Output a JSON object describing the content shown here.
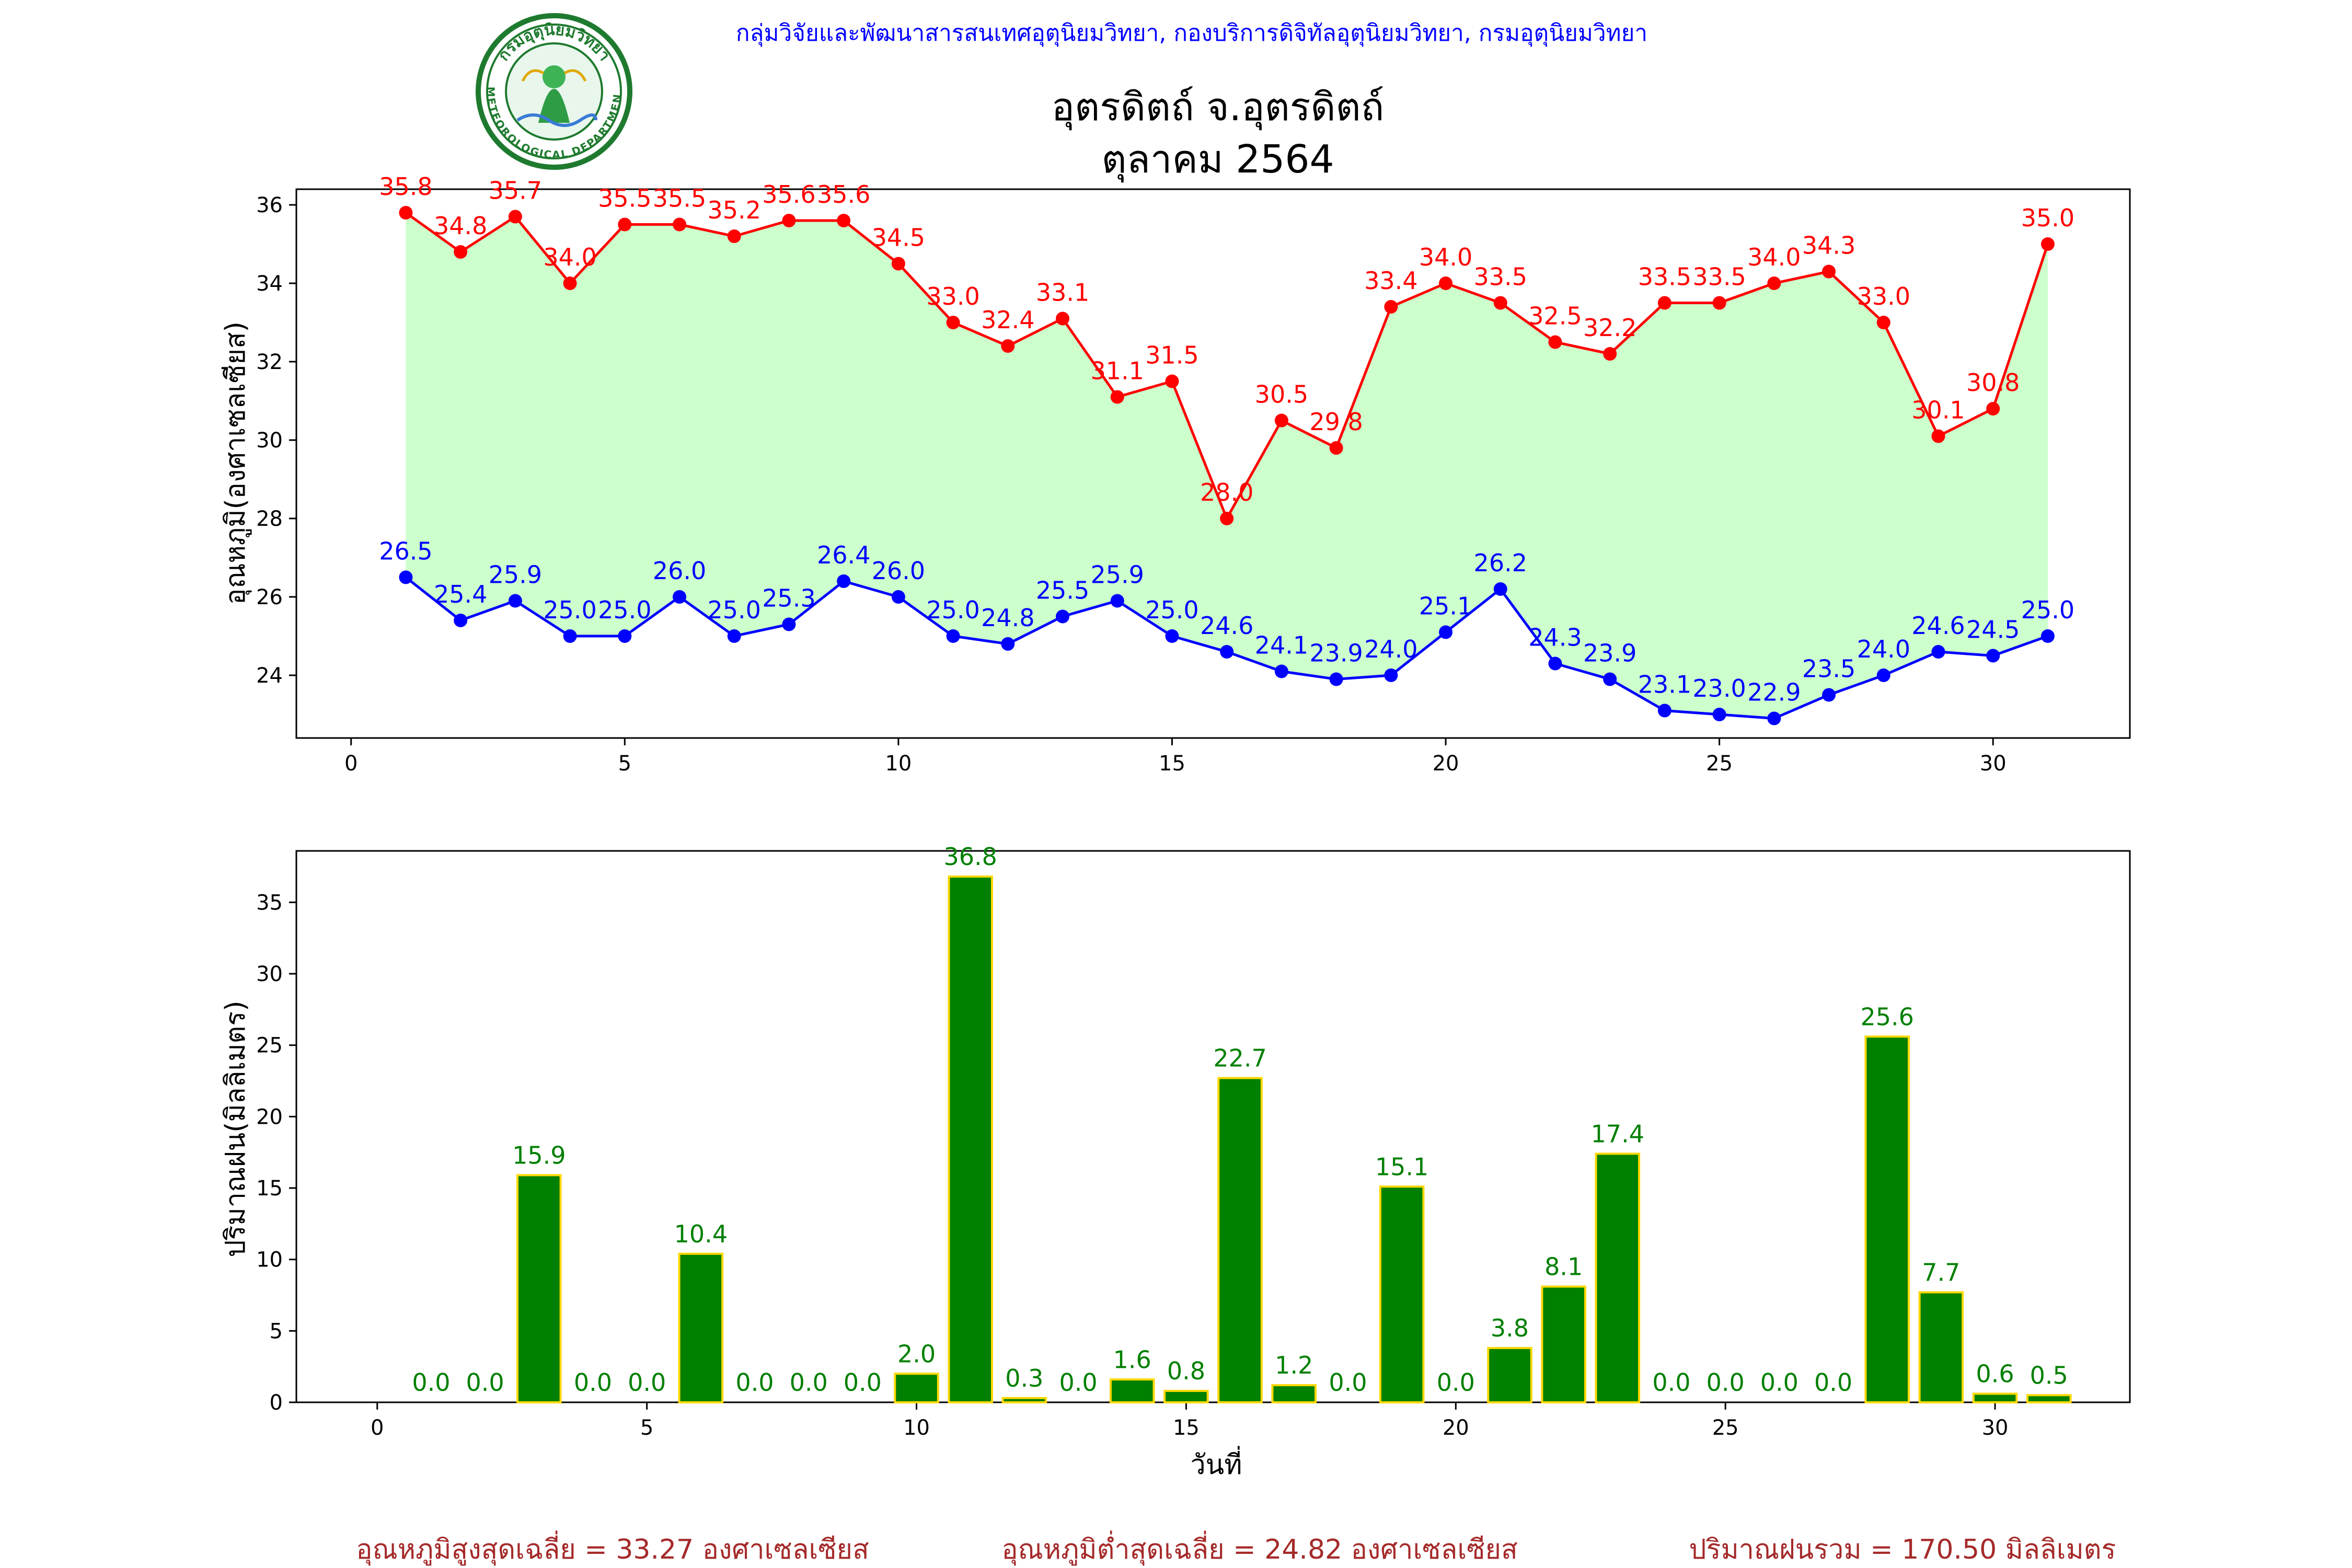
{
  "header": {
    "agency": "กลุ่มวิจัยและพัฒนาสารสนเทศอุตุนิยมวิทยา, กองบริการดิจิทัลอุตุนิยมวิทยา, กรมอุตุนิยมวิทยา",
    "title_line1": "อุตรดิตถ์ จ.อุตรดิตถ์",
    "title_line2": "ตุลาคม 2564"
  },
  "logo": {
    "text_top": "กรมอุตุนิยมวิทยา",
    "text_bottom": "METEOROLOGICAL DEPARTMENT"
  },
  "colors": {
    "max_line": "#ff0000",
    "min_line": "#0000ff",
    "band_fill": "#ccffcc",
    "rain_bar": "#008000",
    "rain_edge": "#ffd700",
    "rain_label": "#008000",
    "footer": "#a52a2a",
    "agency": "#0000ff"
  },
  "chart_data": [
    {
      "type": "line",
      "ylabel": "อุณหภูมิ(องศาเซลเซียส)",
      "xlim": [
        -1,
        32.5
      ],
      "ylim": [
        22.4,
        36.4
      ],
      "xticks": [
        0,
        5,
        10,
        15,
        20,
        25,
        30
      ],
      "yticks": [
        24,
        26,
        28,
        30,
        32,
        34,
        36
      ],
      "x": [
        1,
        2,
        3,
        4,
        5,
        6,
        7,
        8,
        9,
        10,
        11,
        12,
        13,
        14,
        15,
        16,
        17,
        18,
        19,
        20,
        21,
        22,
        23,
        24,
        25,
        26,
        27,
        28,
        29,
        30,
        31
      ],
      "series": [
        {
          "values": [
            35.8,
            34.8,
            35.7,
            34.0,
            35.5,
            35.5,
            35.2,
            35.6,
            35.6,
            34.5,
            33.0,
            32.4,
            33.1,
            31.1,
            31.5,
            28.0,
            30.5,
            29.8,
            33.4,
            34.0,
            33.5,
            32.5,
            32.2,
            33.5,
            33.5,
            34.0,
            34.3,
            33.0,
            30.1,
            30.8,
            35.0
          ]
        },
        {
          "values": [
            26.5,
            25.4,
            25.9,
            25.0,
            25.0,
            26.0,
            25.0,
            25.3,
            26.4,
            26.0,
            25.0,
            24.8,
            25.5,
            25.9,
            25.0,
            24.6,
            24.1,
            23.9,
            24.0,
            25.1,
            26.2,
            24.3,
            23.9,
            23.1,
            23.0,
            22.9,
            23.5,
            24.0,
            24.6,
            24.5,
            25.0
          ]
        }
      ]
    },
    {
      "type": "bar",
      "ylabel": "ปริมาณฝน(มิลลิเมตร)",
      "xlabel": "วันที่",
      "xlim": [
        -1.5,
        32.5
      ],
      "ylim": [
        0,
        38.6
      ],
      "xticks": [
        0,
        5,
        10,
        15,
        20,
        25,
        30
      ],
      "yticks": [
        0,
        5,
        10,
        15,
        20,
        25,
        30,
        35
      ],
      "categories": [
        1,
        2,
        3,
        4,
        5,
        6,
        7,
        8,
        9,
        10,
        11,
        12,
        13,
        14,
        15,
        16,
        17,
        18,
        19,
        20,
        21,
        22,
        23,
        24,
        25,
        26,
        27,
        28,
        29,
        30,
        31
      ],
      "values": [
        0.0,
        0.0,
        15.9,
        0.0,
        0.0,
        10.4,
        0.0,
        0.0,
        0.0,
        2.0,
        36.8,
        0.3,
        0.0,
        1.6,
        0.8,
        22.7,
        1.2,
        0.0,
        15.1,
        0.0,
        3.8,
        8.1,
        17.4,
        0.0,
        0.0,
        0.0,
        0.0,
        25.6,
        7.7,
        0.6,
        0.5
      ]
    }
  ],
  "footer": {
    "avg_max": "อุณหภูมิสูงสุดเฉลี่ย = 33.27 องศาเซลเซียส",
    "avg_min": "อุณหภูมิต่ำสุดเฉลี่ย = 24.82 องศาเซลเซียส",
    "rain_total": "ปริมาณฝนรวม = 170.50 มิลลิเมตร"
  }
}
